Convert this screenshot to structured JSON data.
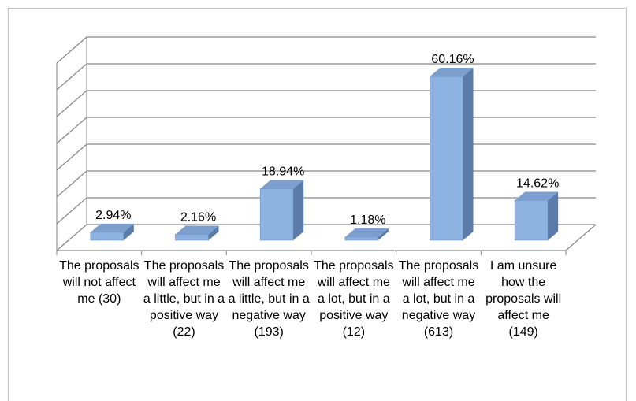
{
  "chart_data": {
    "type": "bar",
    "categories": [
      "The proposals will not affect me (30)",
      "The proposals will affect me a little, but in a positive way (22)",
      "The proposals will affect me a little, but in a negative way (193)",
      "The proposals will affect me a lot, but in a positive way (12)",
      "The proposals will affect me a lot, but in a negative way (613)",
      "I am unsure how the proposals will affect me (149)"
    ],
    "values": [
      2.94,
      2.16,
      18.94,
      1.18,
      60.16,
      14.62
    ],
    "value_labels": [
      "2.94%",
      "2.16%",
      "18.94%",
      "1.18%",
      "60.16%",
      "14.62%"
    ],
    "color": "#8db3e2",
    "ylim": [
      0,
      70
    ],
    "yticks": [
      0,
      10,
      20,
      30,
      40,
      50,
      60,
      70
    ],
    "grid": true
  }
}
